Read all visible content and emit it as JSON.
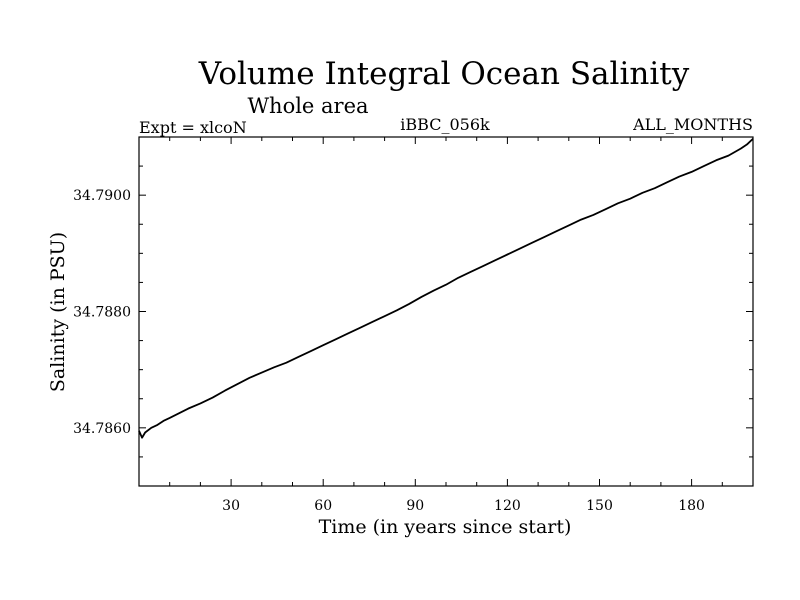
{
  "chart_data": {
    "type": "line",
    "title": "Volume Integral Ocean Salinity",
    "subtitle": "Whole area",
    "experiment": "Expt = xlcoN",
    "run_id": "iBBC_056k",
    "period": "ALL_MONTHS",
    "xlabel": "Time (in years since start)",
    "ylabel": "Salinity (in PSU)",
    "xlim": [
      0,
      200
    ],
    "ylim": [
      34.785,
      34.791
    ],
    "x_ticks": [
      30,
      60,
      90,
      120,
      150,
      180
    ],
    "x_tick_labels": [
      "30",
      "60",
      "90",
      "120",
      "150",
      "180"
    ],
    "y_ticks": [
      34.786,
      34.788,
      34.79
    ],
    "y_tick_labels": [
      "34.7860",
      "34.7880",
      "34.7900"
    ],
    "series": [
      {
        "name": "Salinity",
        "color": "#000000",
        "x": [
          0,
          1,
          2,
          4,
          6,
          8,
          10,
          13,
          16,
          20,
          24,
          28,
          32,
          36,
          40,
          44,
          48,
          52,
          56,
          60,
          64,
          68,
          72,
          76,
          80,
          84,
          88,
          92,
          96,
          100,
          104,
          108,
          112,
          116,
          120,
          124,
          128,
          132,
          136,
          140,
          144,
          148,
          152,
          156,
          160,
          164,
          168,
          172,
          176,
          180,
          184,
          188,
          192,
          196,
          198,
          200
        ],
        "y": [
          34.78595,
          34.78583,
          34.78592,
          34.786,
          34.78605,
          34.78612,
          34.78617,
          34.78625,
          34.78633,
          34.78642,
          34.78652,
          34.78664,
          34.78675,
          34.78686,
          34.78695,
          34.78704,
          34.78712,
          34.78722,
          34.78732,
          34.78742,
          34.78752,
          34.78762,
          34.78772,
          34.78782,
          34.78792,
          34.78802,
          34.78813,
          34.78825,
          34.78836,
          34.78846,
          34.78858,
          34.78868,
          34.78878,
          34.78888,
          34.78898,
          34.78908,
          34.78918,
          34.78928,
          34.78938,
          34.78948,
          34.78958,
          34.78966,
          34.78976,
          34.78986,
          34.78994,
          34.79004,
          34.79012,
          34.79022,
          34.79032,
          34.7904,
          34.7905,
          34.7906,
          34.79068,
          34.7908,
          34.79087,
          34.79097
        ]
      }
    ]
  }
}
